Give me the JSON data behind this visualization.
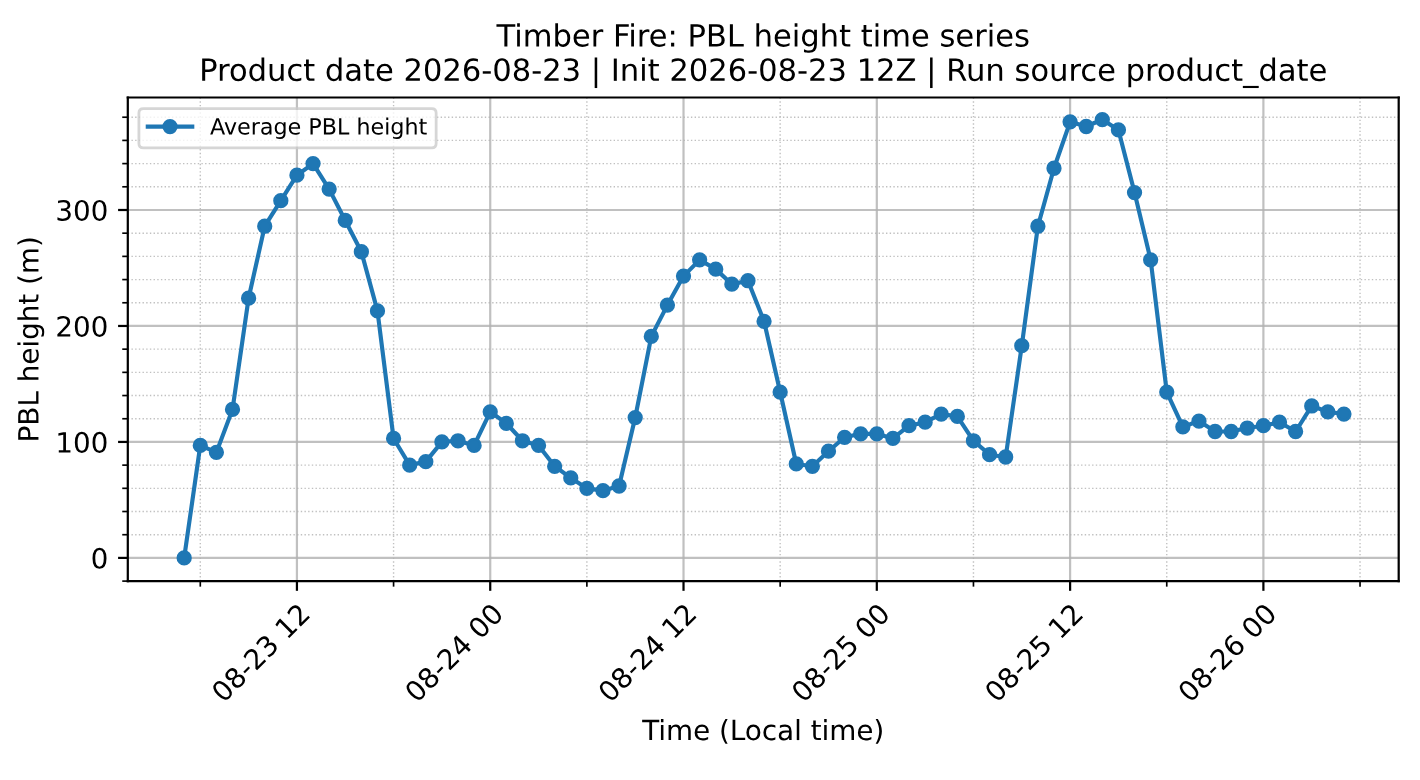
{
  "chart_data": {
    "type": "line",
    "title": "Timber Fire: PBL height time series\nProduct date 2026-08-23 | Init 2026-08-23 12Z | Run source product_date",
    "xlabel": "Time (Local time)",
    "ylabel": "PBL height (m)",
    "x": [
      "2026-08-23T05:00",
      "2026-08-23T06:00",
      "2026-08-23T07:00",
      "2026-08-23T08:00",
      "2026-08-23T09:00",
      "2026-08-23T10:00",
      "2026-08-23T11:00",
      "2026-08-23T12:00",
      "2026-08-23T13:00",
      "2026-08-23T14:00",
      "2026-08-23T15:00",
      "2026-08-23T16:00",
      "2026-08-23T17:00",
      "2026-08-23T18:00",
      "2026-08-23T19:00",
      "2026-08-23T20:00",
      "2026-08-23T21:00",
      "2026-08-23T22:00",
      "2026-08-23T23:00",
      "2026-08-24T00:00",
      "2026-08-24T01:00",
      "2026-08-24T02:00",
      "2026-08-24T03:00",
      "2026-08-24T04:00",
      "2026-08-24T05:00",
      "2026-08-24T06:00",
      "2026-08-24T07:00",
      "2026-08-24T08:00",
      "2026-08-24T09:00",
      "2026-08-24T10:00",
      "2026-08-24T11:00",
      "2026-08-24T12:00",
      "2026-08-24T13:00",
      "2026-08-24T14:00",
      "2026-08-24T15:00",
      "2026-08-24T16:00",
      "2026-08-24T17:00",
      "2026-08-24T18:00",
      "2026-08-24T19:00",
      "2026-08-24T20:00",
      "2026-08-24T21:00",
      "2026-08-24T22:00",
      "2026-08-24T23:00",
      "2026-08-25T00:00",
      "2026-08-25T01:00",
      "2026-08-25T02:00",
      "2026-08-25T03:00",
      "2026-08-25T04:00",
      "2026-08-25T05:00",
      "2026-08-25T06:00",
      "2026-08-25T07:00",
      "2026-08-25T08:00",
      "2026-08-25T09:00",
      "2026-08-25T10:00",
      "2026-08-25T11:00",
      "2026-08-25T12:00",
      "2026-08-25T13:00",
      "2026-08-25T14:00",
      "2026-08-25T15:00",
      "2026-08-25T16:00",
      "2026-08-25T17:00",
      "2026-08-25T18:00",
      "2026-08-25T19:00",
      "2026-08-25T20:00",
      "2026-08-25T21:00",
      "2026-08-25T22:00",
      "2026-08-25T23:00",
      "2026-08-26T00:00",
      "2026-08-26T01:00",
      "2026-08-26T02:00",
      "2026-08-26T03:00",
      "2026-08-26T04:00",
      "2026-08-26T05:00"
    ],
    "series": [
      {
        "name": "Average PBL height",
        "color": "#1f77b4",
        "values": [
          0,
          97,
          91,
          128,
          224,
          286,
          308,
          330,
          340,
          318,
          291,
          264,
          213,
          103,
          80,
          83,
          100,
          101,
          97,
          126,
          116,
          101,
          97,
          79,
          69,
          60,
          58,
          62,
          121,
          191,
          218,
          243,
          257,
          249,
          236,
          239,
          204,
          143,
          81,
          79,
          92,
          104,
          107,
          107,
          103,
          114,
          117,
          124,
          122,
          101,
          89,
          87,
          183,
          286,
          336,
          376,
          372,
          378,
          369,
          315,
          257,
          143,
          113,
          118,
          109,
          109,
          112,
          114,
          117,
          109,
          131,
          126,
          124
        ]
      }
    ],
    "xlim": [
      "2026-08-23T01:30",
      "2026-08-26T08:24"
    ],
    "xticks": [
      {
        "value": "2026-08-23T06:00",
        "label": null
      },
      {
        "value": "2026-08-23T12:00",
        "label": "08-23 12"
      },
      {
        "value": "2026-08-23T18:00",
        "label": null
      },
      {
        "value": "2026-08-24T00:00",
        "label": "08-24 00"
      },
      {
        "value": "2026-08-24T06:00",
        "label": null
      },
      {
        "value": "2026-08-24T12:00",
        "label": "08-24 12"
      },
      {
        "value": "2026-08-24T18:00",
        "label": null
      },
      {
        "value": "2026-08-25T00:00",
        "label": "08-25 00"
      },
      {
        "value": "2026-08-25T06:00",
        "label": null
      },
      {
        "value": "2026-08-25T12:00",
        "label": "08-25 12"
      },
      {
        "value": "2026-08-25T18:00",
        "label": null
      },
      {
        "value": "2026-08-26T00:00",
        "label": "08-26 00"
      },
      {
        "value": "2026-08-26T06:00",
        "label": null
      }
    ],
    "ylim": [
      -20,
      397
    ],
    "yticks": [
      {
        "value": -20,
        "label": null
      },
      0,
      {
        "value": 20,
        "label": null
      },
      {
        "value": 40,
        "label": null
      },
      {
        "value": 60,
        "label": null
      },
      {
        "value": 80,
        "label": null
      },
      100,
      {
        "value": 120,
        "label": null
      },
      {
        "value": 140,
        "label": null
      },
      {
        "value": 160,
        "label": null
      },
      {
        "value": 180,
        "label": null
      },
      200,
      {
        "value": 220,
        "label": null
      },
      {
        "value": 240,
        "label": null
      },
      {
        "value": 260,
        "label": null
      },
      {
        "value": 280,
        "label": null
      },
      300,
      {
        "value": 320,
        "label": null
      },
      {
        "value": 340,
        "label": null
      },
      {
        "value": 360,
        "label": null
      },
      {
        "value": 380,
        "label": null
      }
    ],
    "grid": true,
    "legend": "top left",
    "marker": "circle",
    "line_style": "solid"
  }
}
